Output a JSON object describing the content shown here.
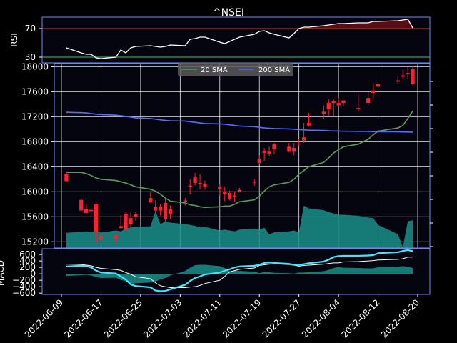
{
  "chart_data": [
    {
      "panel": "rsi",
      "type": "line",
      "title": "^NSEI",
      "ylabel": "RSI",
      "ylim": [
        22,
        86
      ],
      "yticks": [
        "70",
        "30"
      ],
      "ytick_values": [
        70,
        30
      ],
      "reference_lines": [
        70,
        30
      ],
      "x": [
        "2022-06-10",
        "2022-06-13",
        "2022-06-14",
        "2022-06-15",
        "2022-06-16",
        "2022-06-17",
        "2022-06-20",
        "2022-06-21",
        "2022-06-22",
        "2022-06-23",
        "2022-06-24",
        "2022-06-27",
        "2022-06-28",
        "2022-06-29",
        "2022-06-30",
        "2022-07-01",
        "2022-07-04",
        "2022-07-05",
        "2022-07-06",
        "2022-07-07",
        "2022-07-08",
        "2022-07-11",
        "2022-07-12",
        "2022-07-13",
        "2022-07-14",
        "2022-07-15",
        "2022-07-18",
        "2022-07-19",
        "2022-07-20",
        "2022-07-21",
        "2022-07-22",
        "2022-07-25",
        "2022-07-26",
        "2022-07-27",
        "2022-07-28",
        "2022-07-29",
        "2022-08-01",
        "2022-08-02",
        "2022-08-03",
        "2022-08-04",
        "2022-08-05",
        "2022-08-08",
        "2022-08-10",
        "2022-08-11",
        "2022-08-12",
        "2022-08-16",
        "2022-08-17",
        "2022-08-18",
        "2022-08-19"
      ],
      "values": [
        43,
        36,
        34,
        34,
        29,
        28,
        30,
        40,
        36,
        43,
        45,
        46,
        45,
        44,
        45,
        47,
        46,
        55,
        56,
        58,
        58,
        51,
        49,
        52,
        55,
        58,
        62,
        66,
        67,
        64,
        62,
        57,
        63,
        70,
        72,
        72,
        74,
        75,
        76,
        77,
        77,
        78,
        78,
        80,
        80,
        81,
        82,
        83,
        71
      ]
    },
    {
      "panel": "price",
      "type": "candlestick",
      "ylim": [
        15100,
        18050
      ],
      "yticks": [
        "18000",
        "17600",
        "17200",
        "16800",
        "16400",
        "16000",
        "15600",
        "15200"
      ],
      "ytick_values": [
        18000,
        17600,
        17200,
        16800,
        16400,
        16000,
        15600,
        15200
      ],
      "legend": [
        "20 SMA",
        "200 SMA"
      ],
      "legend_position": "top",
      "legend_colors": [
        "#5c9a5c",
        "#5b6bff"
      ],
      "x": [
        "2022-06-10",
        "2022-06-13",
        "2022-06-14",
        "2022-06-15",
        "2022-06-16",
        "2022-06-17",
        "2022-06-20",
        "2022-06-21",
        "2022-06-22",
        "2022-06-23",
        "2022-06-24",
        "2022-06-27",
        "2022-06-28",
        "2022-06-29",
        "2022-06-30",
        "2022-07-01",
        "2022-07-04",
        "2022-07-05",
        "2022-07-06",
        "2022-07-07",
        "2022-07-08",
        "2022-07-11",
        "2022-07-12",
        "2022-07-13",
        "2022-07-14",
        "2022-07-15",
        "2022-07-18",
        "2022-07-19",
        "2022-07-20",
        "2022-07-21",
        "2022-07-22",
        "2022-07-25",
        "2022-07-26",
        "2022-07-27",
        "2022-07-28",
        "2022-07-29",
        "2022-08-01",
        "2022-08-02",
        "2022-08-03",
        "2022-08-04",
        "2022-08-05",
        "2022-08-08",
        "2022-08-10",
        "2022-08-11",
        "2022-08-12",
        "2022-08-16",
        "2022-08-17",
        "2022-08-18",
        "2022-08-19"
      ],
      "open": [
        16280,
        15870,
        15720,
        15710,
        15800,
        15230,
        15250,
        15450,
        15650,
        15480,
        15640,
        15900,
        15760,
        15760,
        15820,
        15640,
        15840,
        16080,
        16230,
        16140,
        16130,
        16080,
        16000,
        15980,
        15920,
        16030,
        16160,
        16460,
        16650,
        16600,
        16760,
        16720,
        16700,
        16760,
        16820,
        17060,
        17240,
        17320,
        17420,
        17380,
        17460,
        17320,
        17420,
        17580,
        17680,
        17760,
        17840,
        17880,
        17960
      ],
      "high": [
        16330,
        15900,
        15800,
        15880,
        15830,
        15320,
        15320,
        15620,
        15680,
        15670,
        15680,
        15990,
        15860,
        15800,
        15900,
        15780,
        15900,
        16200,
        16300,
        16280,
        16180,
        16120,
        16080,
        16020,
        16010,
        16060,
        16200,
        16580,
        16700,
        16720,
        16780,
        16780,
        16780,
        16840,
        17100,
        17260,
        17380,
        17480,
        17480,
        17500,
        17460,
        17550,
        17600,
        17740,
        17760,
        17850,
        17960,
        17990,
        18020
      ],
      "low": [
        16160,
        15700,
        15640,
        15600,
        15180,
        15150,
        15170,
        15420,
        15380,
        15440,
        15540,
        15820,
        15680,
        15620,
        15520,
        15570,
        15780,
        15960,
        16100,
        16040,
        16030,
        15940,
        15850,
        15860,
        15840,
        15990,
        16100,
        16440,
        16490,
        16570,
        16600,
        16630,
        16580,
        16740,
        16780,
        17040,
        17160,
        17220,
        17200,
        17360,
        17370,
        17290,
        17380,
        17480,
        17580,
        17720,
        17800,
        17800,
        17700
      ],
      "close": [
        16170,
        15700,
        15660,
        15690,
        15360,
        15290,
        15300,
        15420,
        15400,
        15580,
        15600,
        15830,
        15700,
        15700,
        15560,
        15720,
        15860,
        16100,
        16140,
        16120,
        16080,
        16040,
        15960,
        15880,
        15940,
        16000,
        16150,
        16520,
        16620,
        16640,
        16680,
        16640,
        16640,
        16770,
        16870,
        17100,
        17280,
        17420,
        17450,
        17420,
        17420,
        17340,
        17500,
        17620,
        17720,
        17780,
        17860,
        17900,
        17720
      ],
      "sma20": [
        16310,
        16310,
        16290,
        16260,
        16220,
        16200,
        16180,
        16160,
        16140,
        16110,
        16080,
        16040,
        16010,
        15960,
        15900,
        15850,
        15820,
        15790,
        15780,
        15760,
        15750,
        15760,
        15770,
        15770,
        15800,
        15840,
        15870,
        15930,
        16010,
        16080,
        16110,
        16150,
        16200,
        16280,
        16340,
        16400,
        16470,
        16540,
        16620,
        16670,
        16720,
        16760,
        16840,
        16910,
        16970,
        17020,
        17060,
        17170,
        17290
      ],
      "sma200": [
        17270,
        17265,
        17260,
        17250,
        17240,
        17235,
        17225,
        17215,
        17205,
        17195,
        17180,
        17170,
        17160,
        17150,
        17140,
        17135,
        17130,
        17120,
        17110,
        17100,
        17090,
        17085,
        17080,
        17070,
        17060,
        17050,
        17040,
        17030,
        17020,
        17015,
        17010,
        17005,
        17000,
        16995,
        16990,
        16985,
        16980,
        16975,
        16972,
        16970,
        16968,
        16966,
        16964,
        16962,
        16960,
        16958,
        16956,
        16954,
        16952
      ],
      "volume": [
        0.33,
        0.35,
        0.36,
        0.35,
        0.37,
        0.34,
        0.38,
        0.36,
        0.42,
        0.45,
        0.46,
        0.47,
        0.8,
        0.52,
        0.58,
        0.55,
        0.52,
        0.5,
        0.48,
        0.45,
        0.46,
        0.38,
        0.4,
        0.38,
        0.36,
        0.4,
        0.42,
        0.4,
        0.44,
        0.3,
        0.34,
        0.36,
        0.38,
        0.34,
        0.92,
        0.86,
        0.82,
        0.78,
        0.75,
        0.72,
        0.72,
        0.7,
        0.66,
        0.65,
        0.5,
        0.3,
        0.02,
        0.58,
        0.6
      ]
    },
    {
      "panel": "macd",
      "type": "line",
      "ylabel": "MACD",
      "ylim": [
        -640,
        780
      ],
      "yticks": [
        "600",
        "400",
        "200",
        "0",
        "−200",
        "−400",
        "−600"
      ],
      "ytick_values": [
        600,
        400,
        200,
        0,
        -200,
        -400,
        -600
      ],
      "x": [
        "2022-06-10",
        "2022-06-13",
        "2022-06-14",
        "2022-06-15",
        "2022-06-16",
        "2022-06-17",
        "2022-06-20",
        "2022-06-21",
        "2022-06-22",
        "2022-06-23",
        "2022-06-24",
        "2022-06-27",
        "2022-06-28",
        "2022-06-29",
        "2022-06-30",
        "2022-07-01",
        "2022-07-04",
        "2022-07-05",
        "2022-07-06",
        "2022-07-07",
        "2022-07-08",
        "2022-07-11",
        "2022-07-12",
        "2022-07-13",
        "2022-07-14",
        "2022-07-15",
        "2022-07-18",
        "2022-07-19",
        "2022-07-20",
        "2022-07-21",
        "2022-07-22",
        "2022-07-25",
        "2022-07-26",
        "2022-07-27",
        "2022-07-28",
        "2022-07-29",
        "2022-08-01",
        "2022-08-02",
        "2022-08-03",
        "2022-08-04",
        "2022-08-05",
        "2022-08-08",
        "2022-08-10",
        "2022-08-11",
        "2022-08-12",
        "2022-08-16",
        "2022-08-17",
        "2022-08-18",
        "2022-08-19"
      ],
      "macd": [
        230,
        250,
        240,
        200,
        100,
        40,
        10,
        -80,
        -180,
        -330,
        -380,
        -420,
        -520,
        -540,
        -530,
        -480,
        -340,
        -220,
        -130,
        -80,
        -20,
        40,
        100,
        140,
        200,
        230,
        250,
        280,
        340,
        350,
        340,
        310,
        280,
        280,
        300,
        330,
        380,
        440,
        520,
        550,
        560,
        560,
        570,
        580,
        640,
        670,
        710,
        740,
        700
      ],
      "signal": [
        300,
        290,
        270,
        250,
        200,
        170,
        130,
        110,
        40,
        -10,
        -90,
        -150,
        -280,
        -370,
        -400,
        -430,
        -430,
        -410,
        -400,
        -360,
        -300,
        -200,
        -80,
        60,
        100,
        140,
        180,
        260,
        280,
        300,
        310,
        290,
        270,
        240,
        260,
        270,
        300,
        320,
        340,
        340,
        370,
        380,
        400,
        410,
        430,
        450,
        470,
        520,
        520
      ],
      "histogram": [
        -70,
        -40,
        -30,
        -50,
        -100,
        -130,
        -120,
        -190,
        -220,
        -320,
        -290,
        -270,
        -240,
        -170,
        -130,
        -50,
        90,
        190,
        270,
        280,
        280,
        240,
        180,
        80,
        100,
        90,
        70,
        20,
        60,
        50,
        30,
        20,
        10,
        40,
        40,
        60,
        80,
        120,
        180,
        210,
        190,
        180,
        170,
        170,
        210,
        220,
        240,
        220,
        180
      ]
    }
  ],
  "x_axis": {
    "tick_labels": [
      "2022-06-09",
      "2022-06-17",
      "2022-06-25",
      "2022-07-03",
      "2022-07-11",
      "2022-07-19",
      "2022-07-27",
      "2022-08-04",
      "2022-08-12",
      "2022-08-20"
    ]
  },
  "colors": {
    "background": "#000000",
    "panel": "#05050f",
    "frame": "#6f86ff",
    "grid": "#ffffff",
    "candle": "#ff2030",
    "volume": "#1a8f8a",
    "rsi_line": "#ffffff",
    "rsi_fill": "#5a0c14",
    "rsi_line70": "#b52a2a",
    "rsi_line30": "#3f9a52",
    "sma20": "#5c9a5c",
    "sma200": "#5b6bff",
    "macd_line": "#40e6ff",
    "signal_line": "#ffffff",
    "histogram": "#1a8f8a"
  }
}
